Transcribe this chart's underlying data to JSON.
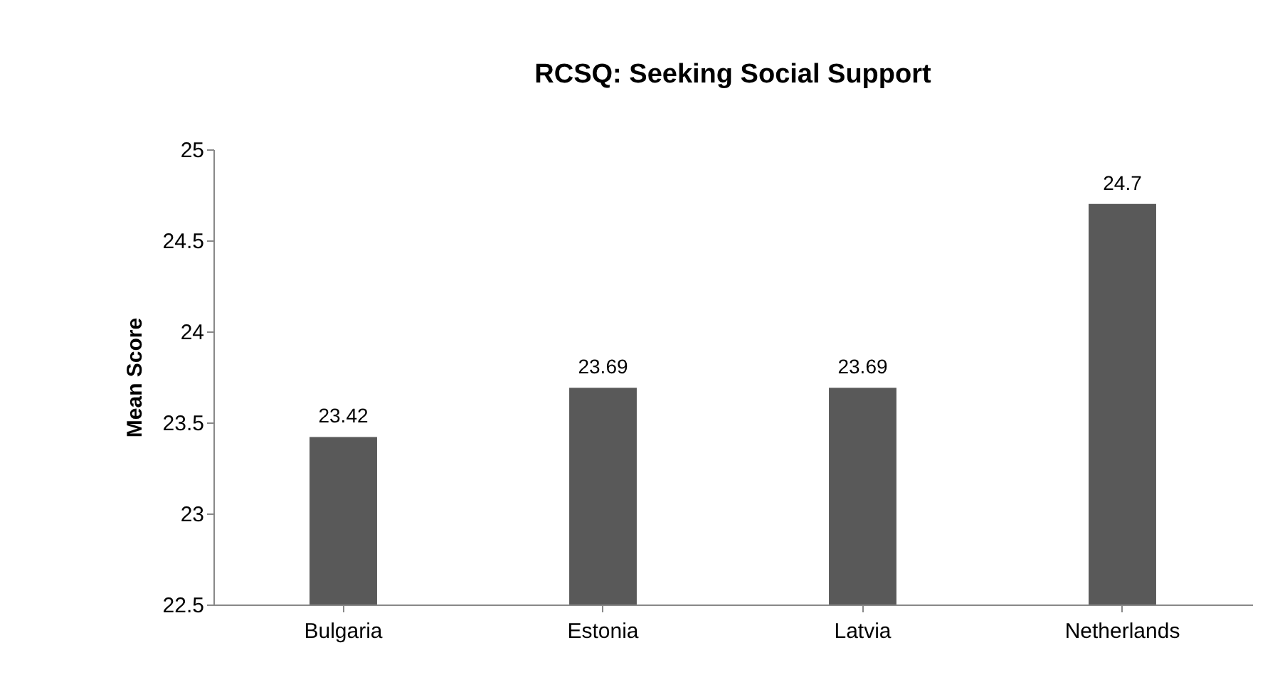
{
  "chart_data": {
    "type": "bar",
    "title": "RCSQ: Seeking Social Support",
    "ylabel": "Mean Score",
    "categories": [
      "Bulgaria",
      "Estonia",
      "Latvia",
      "Netherlands"
    ],
    "values": [
      23.42,
      23.69,
      23.69,
      24.7
    ],
    "color": "#595959",
    "ylim": [
      22.5,
      25
    ],
    "yticks": [
      22.5,
      23,
      23.5,
      24,
      24.5,
      25
    ],
    "grid": false,
    "data_labels": true
  }
}
